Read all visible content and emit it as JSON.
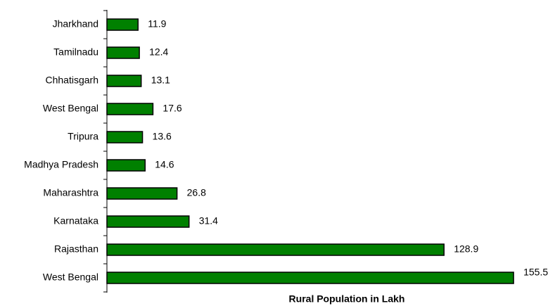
{
  "chart_data": {
    "type": "bar",
    "orientation": "horizontal",
    "xlabel": "Rural Population in Lakh",
    "categories": [
      "Jharkhand",
      "Tamilnadu",
      "Chhatisgarh",
      "West Bengal",
      "Tripura",
      "Madhya Pradesh",
      "Maharashtra",
      "Karnataka",
      "Rajasthan",
      "West Bengal"
    ],
    "values": [
      11.9,
      12.4,
      13.1,
      17.6,
      13.6,
      14.6,
      26.8,
      31.4,
      128.9,
      155.5
    ],
    "color": "#008000",
    "xlim": [
      0,
      170
    ]
  }
}
